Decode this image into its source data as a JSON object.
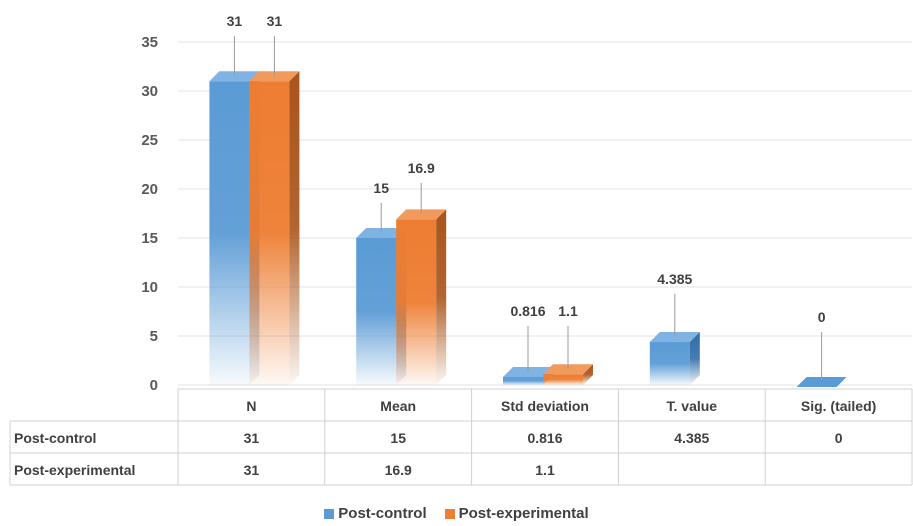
{
  "chart_data": {
    "type": "bar",
    "categories": [
      "N",
      "Mean",
      "Std deviation",
      "T. value",
      "Sig. (tailed)"
    ],
    "series": [
      {
        "name": "Post-control",
        "values": [
          31,
          15,
          0.816,
          4.385,
          0
        ],
        "color": "#5b9bd5",
        "labels": [
          "31",
          "15",
          "0.816",
          "4.385",
          "0"
        ]
      },
      {
        "name": "Post-experimental",
        "values": [
          31,
          16.9,
          1.1,
          null,
          null
        ],
        "color": "#ed7d31",
        "labels": [
          "31",
          "16.9",
          "1.1",
          "",
          ""
        ]
      }
    ],
    "yticks": [
      "0",
      "5",
      "10",
      "15",
      "20",
      "25",
      "30",
      "35"
    ],
    "ylim": [
      0,
      35
    ],
    "grid": true,
    "legend_position": "bottom",
    "data_table": true
  }
}
